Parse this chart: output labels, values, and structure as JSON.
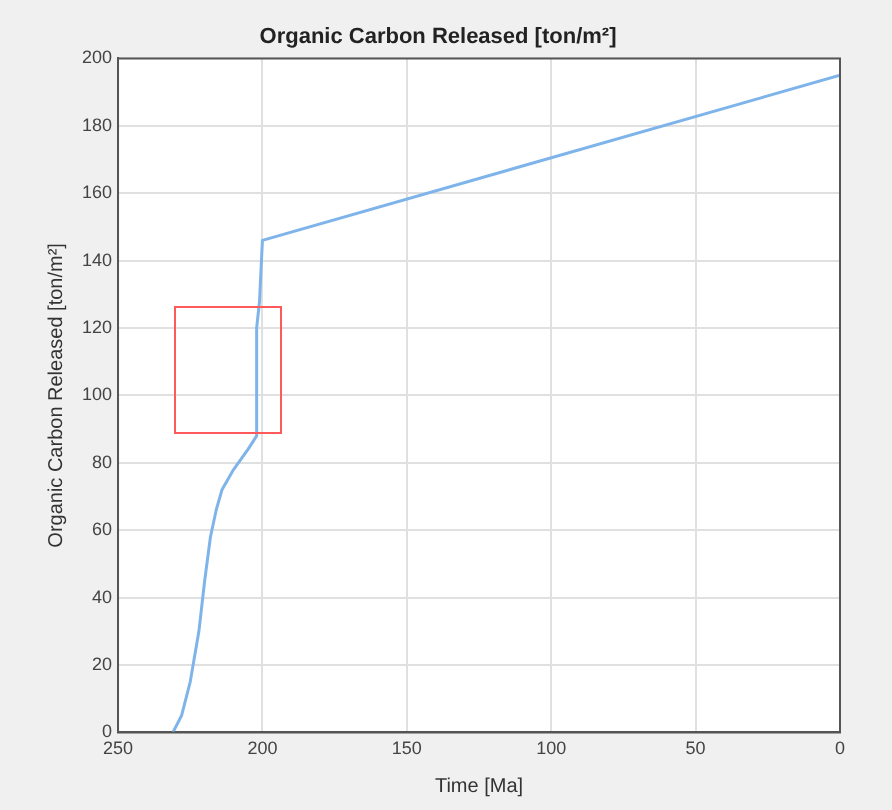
{
  "chart_data": {
    "type": "line",
    "title": "Organic Carbon Released [ton/m²]",
    "xlabel": "Time [Ma]",
    "ylabel": "Organic Carbon Released [ton/m²]",
    "x": [
      231,
      228,
      225,
      222,
      220,
      218,
      216,
      214,
      210,
      205,
      202,
      202,
      201,
      200,
      0
    ],
    "series": [
      {
        "color": "#7eb4ea",
        "values": [
          0,
          5,
          15,
          30,
          45,
          58,
          66,
          72,
          78,
          84,
          88,
          120,
          128,
          146,
          195
        ]
      }
    ],
    "xlim": [
      250,
      0
    ],
    "xticks": [
      250,
      200,
      150,
      100,
      50,
      0
    ],
    "ylim": [
      0,
      200
    ],
    "yticks": [
      0,
      20,
      40,
      60,
      80,
      100,
      120,
      140,
      160,
      180,
      200
    ],
    "grid": true,
    "legend": false,
    "marker": "none",
    "line_style": "solid"
  }
}
